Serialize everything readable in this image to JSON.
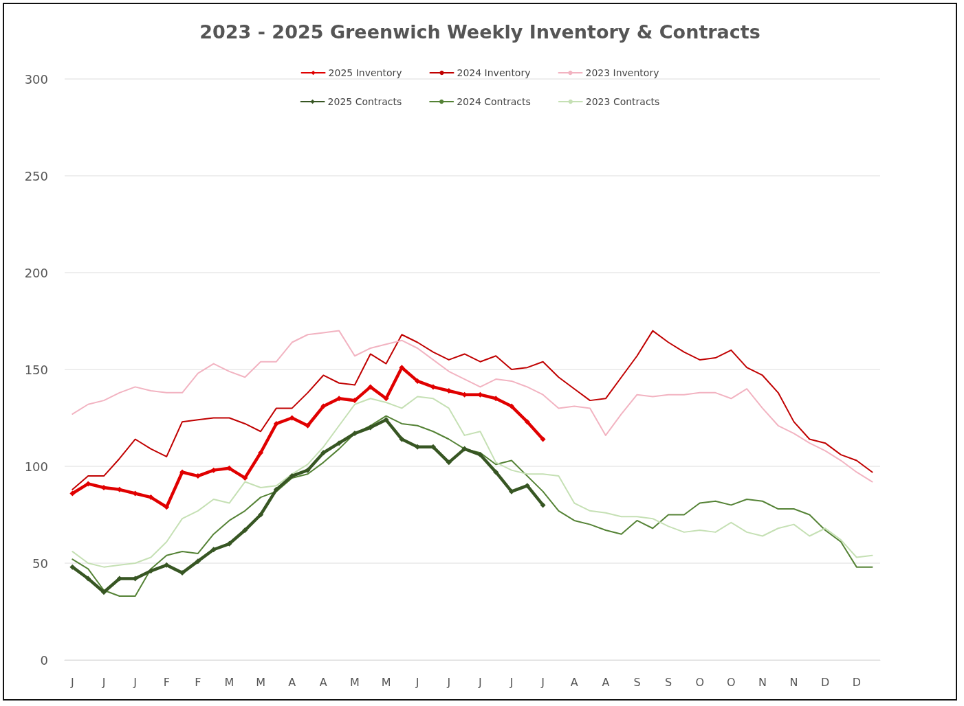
{
  "chart_data": {
    "type": "line",
    "title": "2023 - 2025 Greenwich Weekly Inventory & Contracts",
    "categories": [
      "J",
      null,
      "J",
      null,
      "J",
      null,
      "F",
      null,
      "F",
      null,
      "M",
      null,
      "M",
      null,
      "A",
      null,
      "A",
      null,
      "M",
      null,
      "M",
      null,
      "J",
      null,
      "J",
      null,
      "J",
      null,
      "J",
      null,
      "J",
      null,
      "A",
      null,
      "A",
      null,
      "S",
      null,
      "S",
      null,
      "O",
      null,
      "O",
      null,
      "N",
      null,
      "N",
      null,
      "D",
      null,
      "D",
      null
    ],
    "series": [
      {
        "name": "2025 Inventory",
        "color": "#e00000",
        "marker": "diamond",
        "values": [
          86,
          91,
          89,
          88,
          86,
          84,
          79,
          97,
          95,
          98,
          99,
          94,
          107,
          122,
          125,
          121,
          131,
          135,
          134,
          141,
          135,
          151,
          144,
          141,
          139,
          137,
          137,
          135,
          131,
          123,
          114,
          null,
          null,
          null,
          null,
          null,
          null,
          null,
          null,
          null,
          null,
          null,
          null,
          null,
          null,
          null,
          null,
          null,
          null,
          null,
          null,
          null
        ]
      },
      {
        "name": "2024 Inventory",
        "color": "#c00000",
        "marker": "none",
        "values": [
          88,
          95,
          95,
          104,
          114,
          109,
          105,
          123,
          124,
          125,
          125,
          122,
          118,
          130,
          130,
          138,
          147,
          143,
          142,
          158,
          153,
          168,
          164,
          159,
          155,
          158,
          154,
          157,
          150,
          151,
          154,
          146,
          140,
          134,
          135,
          146,
          157,
          170,
          164,
          159,
          155,
          156,
          160,
          151,
          147,
          138,
          123,
          114,
          112,
          106,
          103,
          97
        ]
      },
      {
        "name": "2023 Inventory",
        "color": "#f2b3c1",
        "marker": "none",
        "values": [
          127,
          132,
          134,
          138,
          141,
          139,
          138,
          138,
          148,
          153,
          149,
          146,
          154,
          154,
          164,
          168,
          169,
          170,
          157,
          161,
          163,
          165,
          161,
          155,
          149,
          145,
          141,
          145,
          144,
          141,
          137,
          130,
          131,
          130,
          116,
          127,
          137,
          136,
          137,
          137,
          138,
          138,
          135,
          140,
          130,
          121,
          117,
          112,
          108,
          103,
          97,
          92
        ]
      },
      {
        "name": "2025 Contracts",
        "color": "#375623",
        "marker": "diamond",
        "values": [
          48,
          42,
          35,
          42,
          42,
          46,
          49,
          45,
          51,
          57,
          60,
          67,
          75,
          88,
          95,
          98,
          107,
          112,
          117,
          120,
          124,
          114,
          110,
          110,
          102,
          109,
          106,
          97,
          87,
          90,
          80,
          null,
          null,
          null,
          null,
          null,
          null,
          null,
          null,
          null,
          null,
          null,
          null,
          null,
          null,
          null,
          null,
          null,
          null,
          null,
          null,
          null
        ]
      },
      {
        "name": "2024 Contracts",
        "color": "#548235",
        "marker": "none",
        "values": [
          52,
          47,
          36,
          33,
          33,
          47,
          54,
          56,
          55,
          65,
          72,
          77,
          84,
          87,
          94,
          96,
          102,
          109,
          117,
          121,
          126,
          122,
          121,
          118,
          114,
          109,
          107,
          101,
          103,
          95,
          87,
          77,
          72,
          70,
          67,
          65,
          72,
          68,
          75,
          75,
          81,
          82,
          80,
          83,
          82,
          78,
          78,
          75,
          67,
          61,
          48,
          48
        ]
      },
      {
        "name": "2023 Contracts",
        "color": "#c5e0b4",
        "marker": "none",
        "values": [
          56,
          50,
          48,
          49,
          50,
          53,
          61,
          73,
          77,
          83,
          81,
          92,
          89,
          90,
          96,
          101,
          110,
          121,
          132,
          135,
          133,
          130,
          136,
          135,
          130,
          116,
          118,
          102,
          98,
          96,
          96,
          95,
          81,
          77,
          76,
          74,
          74,
          73,
          69,
          66,
          67,
          66,
          71,
          66,
          64,
          68,
          70,
          64,
          68,
          62,
          53,
          54
        ]
      }
    ],
    "ylim": [
      0,
      300
    ],
    "yticks": [
      0,
      50,
      100,
      150,
      200,
      250,
      300
    ],
    "grid": "y",
    "legend": "top",
    "line_style": "solid"
  }
}
